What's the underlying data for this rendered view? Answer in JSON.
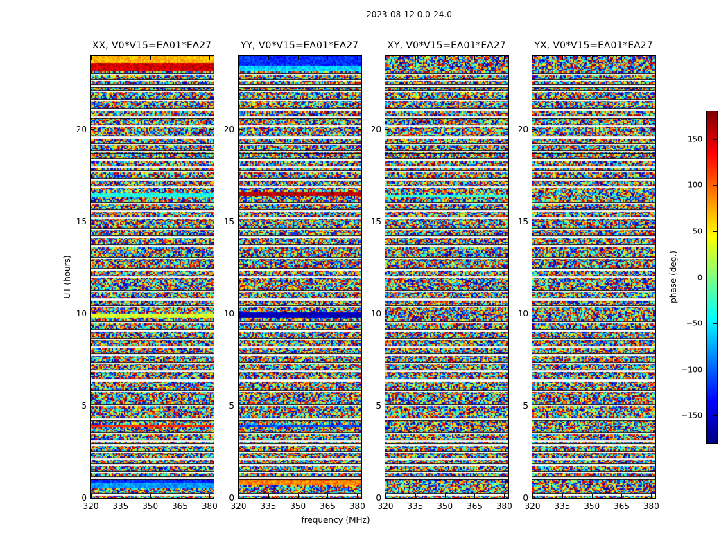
{
  "figure": {
    "suptitle": "2023-08-12 0.0-24.0"
  },
  "chart_data": {
    "type": "heatmap",
    "title": "2023-08-12 0.0-24.0",
    "xlabel": "frequency (MHz)",
    "ylabel": "UT (hours)",
    "xlim": [
      320,
      382
    ],
    "ylim": [
      0,
      24
    ],
    "x_ticks": [
      "320",
      "335",
      "350",
      "365",
      "380"
    ],
    "x_tick_values": [
      320,
      335,
      350,
      365,
      380
    ],
    "y_ticks": [
      "0",
      "5",
      "10",
      "15",
      "20"
    ],
    "y_tick_values": [
      0,
      5,
      10,
      15,
      20
    ],
    "colorbar": {
      "label": "phase (deg.)",
      "range": [
        -180,
        180
      ],
      "ticks": [
        "150",
        "100",
        "50",
        "0",
        "−50",
        "−100",
        "−150"
      ],
      "tick_values": [
        150,
        100,
        50,
        0,
        -50,
        -100,
        -150
      ],
      "colormap": "jet"
    },
    "panels": [
      {
        "title": "XX, V0*V15=EA01*EA27",
        "noise_level": 0.5,
        "coherent_bands": [
          {
            "hours": [
              23.15,
              23.65
            ],
            "phase": 150
          },
          {
            "hours": [
              23.65,
              24.0
            ],
            "phase": 70
          },
          {
            "hours": [
              16.3,
              16.55
            ],
            "phase": -40
          },
          {
            "hours": [
              9.75,
              10.0
            ],
            "phase": 30
          },
          {
            "hours": [
              3.85,
              4.0
            ],
            "phase": 120
          },
          {
            "hours": [
              0.85,
              1.0
            ],
            "phase": -120
          },
          {
            "hours": [
              0.55,
              0.85
            ],
            "phase": -80
          }
        ]
      },
      {
        "title": "YY, V0*V15=EA01*EA27",
        "noise_level": 0.5,
        "coherent_bands": [
          {
            "hours": [
              23.5,
              24.0
            ],
            "phase": -120
          },
          {
            "hours": [
              23.15,
              23.5
            ],
            "phase": -60
          },
          {
            "hours": [
              16.4,
              16.65
            ],
            "phase": 160
          },
          {
            "hours": [
              9.8,
              10.05
            ],
            "phase": -160
          },
          {
            "hours": [
              3.85,
              4.0
            ],
            "phase": -110
          },
          {
            "hours": [
              0.7,
              1.0
            ],
            "phase": 90
          },
          {
            "hours": [
              1.0,
              1.15
            ],
            "phase": 150
          }
        ]
      },
      {
        "title": "XY, V0*V15=EA01*EA27",
        "noise_level": 0.5,
        "coherent_bands": [
          {
            "hours": [
              16.3,
              16.45
            ],
            "phase": -30
          }
        ]
      },
      {
        "title": "YX, V0*V15=EA01*EA27",
        "noise_level": 0.5,
        "coherent_bands": []
      }
    ],
    "flagged_gaps_hours": [
      0.2,
      1.1,
      1.4,
      1.8,
      2.1,
      2.5,
      2.9,
      3.1,
      3.5,
      4.3,
      5.0,
      5.8,
      6.4,
      6.9,
      7.3,
      7.8,
      8.2,
      8.6,
      9.1,
      9.5,
      10.4,
      10.8,
      11.2,
      12.0,
      12.4,
      13.0,
      13.7,
      14.2,
      14.6,
      15.2,
      15.6,
      16.0,
      16.9,
      17.3,
      17.7,
      18.0,
      18.4,
      18.8,
      19.2,
      19.6,
      20.2,
      20.7,
      21.1,
      21.6,
      22.1,
      22.4,
      22.7,
      23.0
    ]
  }
}
